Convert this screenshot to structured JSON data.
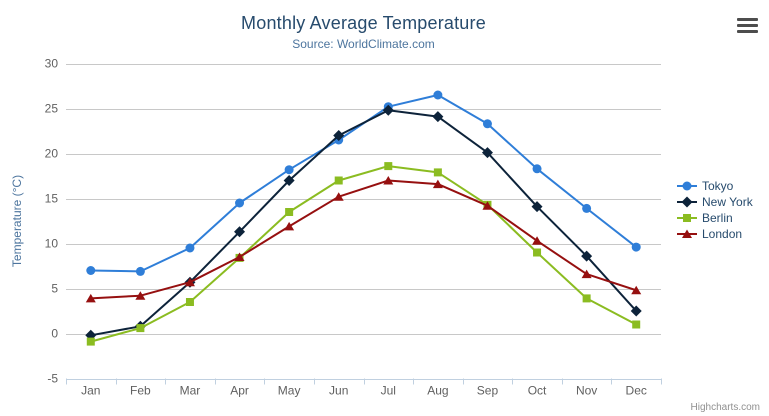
{
  "header": {
    "title": "Monthly Average Temperature",
    "subtitle": "Source: WorldClimate.com"
  },
  "credits": "Highcharts.com",
  "icons": {
    "context_menu": "hamburger-menu-icon"
  },
  "colors": {
    "title": "#274b6d",
    "subtitle": "#4d759e",
    "axis_title": "#4d759e",
    "axis_labels": "#606060",
    "grid": "#c8c8c8",
    "axis_line": "#c0d0e0",
    "legend_text": "#274b6d",
    "credits": "#909090",
    "menu_icon": "#4d4d4d"
  },
  "chart_data": {
    "type": "line",
    "title": "Monthly Average Temperature",
    "subtitle": "Source: WorldClimate.com",
    "categories": [
      "Jan",
      "Feb",
      "Mar",
      "Apr",
      "May",
      "Jun",
      "Jul",
      "Aug",
      "Sep",
      "Oct",
      "Nov",
      "Dec"
    ],
    "xlabel": "",
    "ylabel": "Temperature (°C)",
    "ylim": [
      -5,
      30
    ],
    "ytick_interval": 5,
    "grid": true,
    "legend_position": "right-middle",
    "series": [
      {
        "name": "Tokyo",
        "marker": "circle",
        "color": "#2f7ed8",
        "values": [
          7.0,
          6.9,
          9.5,
          14.5,
          18.2,
          21.5,
          25.2,
          26.5,
          23.3,
          18.3,
          13.9,
          9.6
        ]
      },
      {
        "name": "New York",
        "marker": "diamond",
        "color": "#0d233a",
        "values": [
          -0.2,
          0.8,
          5.7,
          11.3,
          17.0,
          22.0,
          24.8,
          24.1,
          20.1,
          14.1,
          8.6,
          2.5
        ]
      },
      {
        "name": "Berlin",
        "marker": "square",
        "color": "#8bbc21",
        "values": [
          -0.9,
          0.6,
          3.5,
          8.4,
          13.5,
          17.0,
          18.6,
          17.9,
          14.3,
          9.0,
          3.9,
          1.0
        ]
      },
      {
        "name": "London",
        "marker": "triangle",
        "color": "#961010",
        "values": [
          3.9,
          4.2,
          5.7,
          8.5,
          11.9,
          15.2,
          17.0,
          16.6,
          14.2,
          10.3,
          6.6,
          4.8
        ]
      }
    ]
  }
}
